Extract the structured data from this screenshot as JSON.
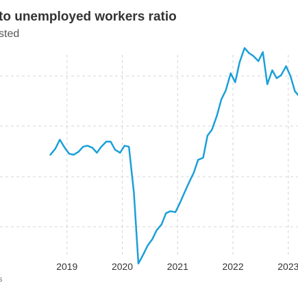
{
  "chart_data": {
    "type": "line",
    "title": "to unemployed workers ratio",
    "subtitle": "sted",
    "source": "s",
    "xlabel": "",
    "ylabel": "",
    "x_ticks": [
      "2019",
      "2020",
      "2021",
      "2022",
      "2023"
    ],
    "xlim": [
      2018.0,
      2023.2
    ],
    "ylim": [
      0.2,
      2.2
    ],
    "grid": true,
    "series": [
      {
        "color": "#1a9fd9",
        "x": [
          2018.7,
          2018.79,
          2018.87,
          2018.96,
          2019.04,
          2019.12,
          2019.21,
          2019.29,
          2019.37,
          2019.46,
          2019.54,
          2019.62,
          2019.71,
          2019.79,
          2019.87,
          2019.96,
          2020.04,
          2020.12,
          2020.21,
          2020.29,
          2020.37,
          2020.46,
          2020.54,
          2020.62,
          2020.71,
          2020.79,
          2020.87,
          2020.96,
          2021.04,
          2021.12,
          2021.21,
          2021.29,
          2021.37,
          2021.46,
          2021.54,
          2021.62,
          2021.71,
          2021.79,
          2021.87,
          2021.96,
          2022.04,
          2022.12,
          2022.21,
          2022.29,
          2022.37,
          2022.46,
          2022.54,
          2022.62,
          2022.71,
          2022.79,
          2022.87,
          2022.96,
          2023.04,
          2023.12,
          2023.2
        ],
        "y": [
          1.18,
          1.24,
          1.33,
          1.25,
          1.19,
          1.18,
          1.21,
          1.26,
          1.27,
          1.25,
          1.2,
          1.26,
          1.31,
          1.31,
          1.23,
          1.2,
          1.27,
          1.26,
          0.8,
          0.1,
          0.18,
          0.28,
          0.34,
          0.43,
          0.49,
          0.6,
          0.62,
          0.61,
          0.7,
          0.8,
          0.91,
          1.0,
          1.13,
          1.15,
          1.37,
          1.43,
          1.57,
          1.73,
          1.82,
          1.99,
          1.9,
          2.1,
          2.24,
          2.19,
          2.16,
          2.11,
          2.2,
          1.88,
          2.02,
          1.94,
          1.97,
          2.06,
          1.96,
          1.81,
          1.76
        ]
      }
    ]
  }
}
